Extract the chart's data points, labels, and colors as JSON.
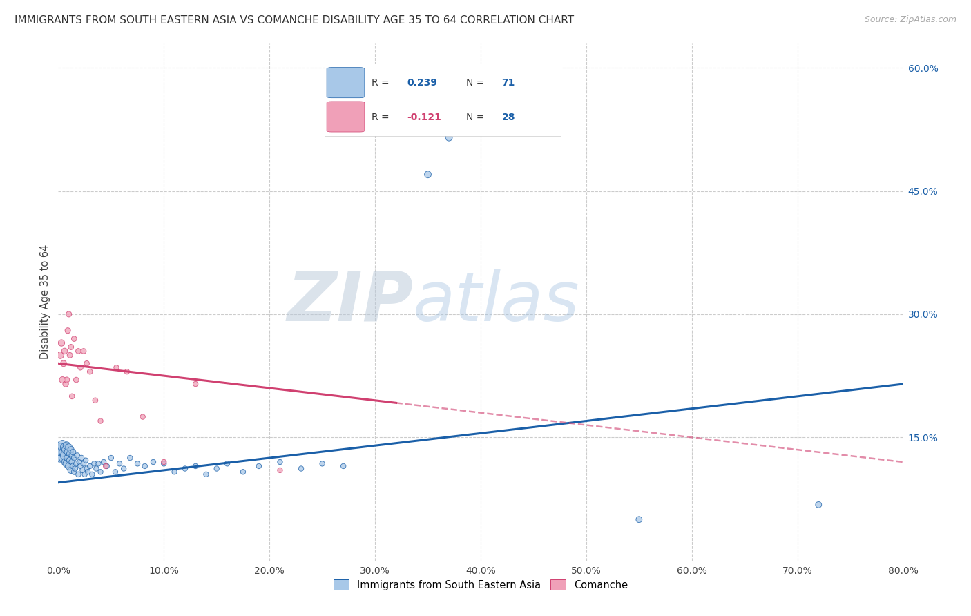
{
  "title": "IMMIGRANTS FROM SOUTH EASTERN ASIA VS COMANCHE DISABILITY AGE 35 TO 64 CORRELATION CHART",
  "source": "Source: ZipAtlas.com",
  "ylabel": "Disability Age 35 to 64",
  "legend_label1": "Immigrants from South Eastern Asia",
  "legend_label2": "Comanche",
  "R1": 0.239,
  "N1": 71,
  "R2": -0.121,
  "N2": 28,
  "color1": "#a8c8e8",
  "color1_line": "#1a5fa8",
  "color2": "#f0a0b8",
  "color2_line": "#d04070",
  "xlim": [
    0.0,
    0.8
  ],
  "ylim": [
    0.0,
    0.63
  ],
  "xticks": [
    0.0,
    0.1,
    0.2,
    0.3,
    0.4,
    0.5,
    0.6,
    0.7,
    0.8
  ],
  "yticks_right": [
    0.15,
    0.3,
    0.45,
    0.6
  ],
  "background_color": "#ffffff",
  "grid_color": "#cccccc",
  "blue_scatter_x": [
    0.002,
    0.003,
    0.004,
    0.005,
    0.005,
    0.006,
    0.006,
    0.007,
    0.007,
    0.008,
    0.008,
    0.009,
    0.009,
    0.01,
    0.01,
    0.011,
    0.011,
    0.012,
    0.012,
    0.013,
    0.013,
    0.014,
    0.014,
    0.015,
    0.015,
    0.016,
    0.017,
    0.018,
    0.019,
    0.02,
    0.021,
    0.022,
    0.023,
    0.024,
    0.025,
    0.026,
    0.027,
    0.028,
    0.03,
    0.032,
    0.034,
    0.036,
    0.038,
    0.04,
    0.043,
    0.046,
    0.05,
    0.054,
    0.058,
    0.062,
    0.068,
    0.075,
    0.082,
    0.09,
    0.1,
    0.11,
    0.12,
    0.13,
    0.14,
    0.15,
    0.16,
    0.175,
    0.19,
    0.21,
    0.23,
    0.25,
    0.27,
    0.35,
    0.37,
    0.55,
    0.72
  ],
  "blue_scatter_y": [
    0.13,
    0.135,
    0.14,
    0.125,
    0.132,
    0.128,
    0.138,
    0.12,
    0.135,
    0.118,
    0.14,
    0.125,
    0.132,
    0.115,
    0.138,
    0.122,
    0.13,
    0.11,
    0.135,
    0.12,
    0.128,
    0.115,
    0.132,
    0.108,
    0.125,
    0.112,
    0.118,
    0.128,
    0.105,
    0.12,
    0.115,
    0.125,
    0.11,
    0.118,
    0.105,
    0.122,
    0.112,
    0.108,
    0.115,
    0.105,
    0.118,
    0.112,
    0.118,
    0.108,
    0.12,
    0.115,
    0.125,
    0.108,
    0.118,
    0.112,
    0.125,
    0.118,
    0.115,
    0.12,
    0.118,
    0.108,
    0.112,
    0.115,
    0.105,
    0.112,
    0.118,
    0.108,
    0.115,
    0.12,
    0.112,
    0.118,
    0.115,
    0.47,
    0.515,
    0.05,
    0.068
  ],
  "blue_scatter_sizes": [
    300,
    180,
    120,
    90,
    85,
    80,
    75,
    70,
    65,
    62,
    60,
    58,
    55,
    52,
    50,
    48,
    46,
    44,
    42,
    40,
    38,
    36,
    35,
    33,
    32,
    30,
    30,
    30,
    30,
    30,
    30,
    30,
    30,
    30,
    28,
    28,
    28,
    28,
    28,
    28,
    28,
    28,
    28,
    28,
    28,
    28,
    28,
    28,
    28,
    28,
    28,
    28,
    28,
    28,
    28,
    28,
    28,
    28,
    28,
    28,
    28,
    28,
    28,
    28,
    28,
    28,
    28,
    50,
    50,
    40,
    40
  ],
  "pink_scatter_x": [
    0.002,
    0.003,
    0.004,
    0.005,
    0.006,
    0.007,
    0.008,
    0.009,
    0.01,
    0.011,
    0.012,
    0.013,
    0.015,
    0.017,
    0.019,
    0.021,
    0.024,
    0.027,
    0.03,
    0.035,
    0.04,
    0.045,
    0.055,
    0.065,
    0.08,
    0.1,
    0.13,
    0.21
  ],
  "pink_scatter_y": [
    0.25,
    0.265,
    0.22,
    0.24,
    0.255,
    0.215,
    0.22,
    0.28,
    0.3,
    0.25,
    0.26,
    0.2,
    0.27,
    0.22,
    0.255,
    0.235,
    0.255,
    0.24,
    0.23,
    0.195,
    0.17,
    0.115,
    0.235,
    0.23,
    0.175,
    0.12,
    0.215,
    0.11
  ],
  "pink_scatter_sizes": [
    50,
    45,
    42,
    40,
    38,
    36,
    35,
    34,
    33,
    32,
    32,
    30,
    30,
    30,
    30,
    30,
    30,
    30,
    30,
    30,
    28,
    28,
    28,
    28,
    28,
    28,
    28,
    28
  ],
  "trendline1_x0": 0.0,
  "trendline1_y0": 0.095,
  "trendline1_x1": 0.8,
  "trendline1_y1": 0.215,
  "trendline1_solid_end": 0.8,
  "trendline2_x0": 0.0,
  "trendline2_y0": 0.24,
  "trendline2_x1": 0.8,
  "trendline2_y1": 0.12,
  "trendline2_solid_end": 0.32
}
